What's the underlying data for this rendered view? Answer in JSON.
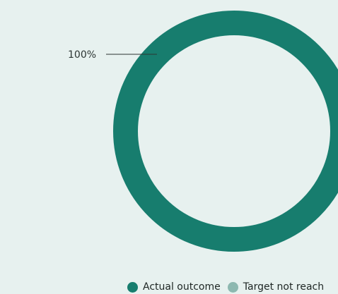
{
  "chart_data": {
    "type": "pie",
    "donut": true,
    "slices": [
      {
        "label": "Actual outcome",
        "value": 100,
        "value_label": "100%",
        "color": "#177d6e"
      },
      {
        "label": "Target not reached",
        "value": 0,
        "value_label": "",
        "color": "#8db8b0"
      }
    ],
    "legend": {
      "position": "bottom",
      "entries": [
        {
          "label": "Actual outcome",
          "color": "#177d6e"
        },
        {
          "label": "Target not reach",
          "color": "#8db8b0"
        }
      ]
    }
  }
}
